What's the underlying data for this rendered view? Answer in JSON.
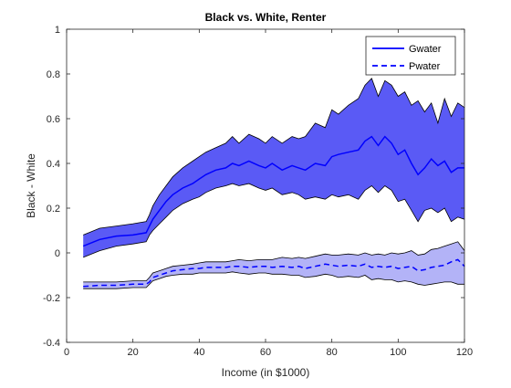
{
  "chart_data": {
    "type": "area",
    "title": "Black vs. White, Renter",
    "xlabel": "Income (in $1000)",
    "ylabel": "Black - White",
    "xlim": [
      0,
      120
    ],
    "ylim": [
      -0.4,
      1
    ],
    "xticks": [
      0,
      20,
      40,
      60,
      80,
      100,
      120
    ],
    "xtick_labels": [
      "0",
      "20",
      "40",
      "60",
      "80",
      "100",
      "120"
    ],
    "yticks": [
      -0.4,
      -0.2,
      0,
      0.2,
      0.4,
      0.6,
      0.8,
      1
    ],
    "ytick_labels": [
      "-0.4",
      "-0.2",
      "0",
      "0.2",
      "0.4",
      "0.6",
      "0.8",
      "1"
    ],
    "grid": false,
    "legend_position": "top-right",
    "x": [
      5,
      10,
      15,
      20,
      24,
      25,
      26,
      28,
      30,
      32,
      35,
      38,
      40,
      42,
      45,
      48,
      50,
      52,
      55,
      58,
      60,
      62,
      65,
      68,
      70,
      72,
      75,
      78,
      80,
      82,
      85,
      88,
      90,
      92,
      94,
      96,
      98,
      100,
      102,
      104,
      106,
      108,
      110,
      112,
      114,
      116,
      118,
      120
    ],
    "series": [
      {
        "name": "Gwater",
        "line_style": "solid",
        "color": "#0000ff",
        "band_color": "#5a5af5",
        "values": [
          0.03,
          0.06,
          0.075,
          0.08,
          0.09,
          0.12,
          0.15,
          0.19,
          0.23,
          0.26,
          0.29,
          0.31,
          0.33,
          0.35,
          0.37,
          0.38,
          0.4,
          0.39,
          0.41,
          0.39,
          0.38,
          0.4,
          0.37,
          0.39,
          0.38,
          0.37,
          0.4,
          0.39,
          0.43,
          0.44,
          0.45,
          0.46,
          0.5,
          0.52,
          0.48,
          0.52,
          0.49,
          0.44,
          0.46,
          0.4,
          0.35,
          0.38,
          0.42,
          0.39,
          0.41,
          0.36,
          0.38,
          0.38
        ],
        "upper": [
          0.08,
          0.11,
          0.12,
          0.13,
          0.14,
          0.17,
          0.21,
          0.26,
          0.3,
          0.34,
          0.38,
          0.41,
          0.43,
          0.45,
          0.47,
          0.49,
          0.52,
          0.49,
          0.53,
          0.51,
          0.49,
          0.52,
          0.49,
          0.52,
          0.51,
          0.52,
          0.58,
          0.56,
          0.64,
          0.62,
          0.66,
          0.69,
          0.75,
          0.78,
          0.7,
          0.77,
          0.75,
          0.7,
          0.72,
          0.66,
          0.68,
          0.63,
          0.67,
          0.58,
          0.69,
          0.61,
          0.67,
          0.65
        ],
        "lower": [
          -0.02,
          0.01,
          0.03,
          0.04,
          0.05,
          0.08,
          0.1,
          0.13,
          0.16,
          0.19,
          0.22,
          0.24,
          0.25,
          0.27,
          0.29,
          0.3,
          0.31,
          0.3,
          0.31,
          0.29,
          0.28,
          0.29,
          0.26,
          0.27,
          0.26,
          0.24,
          0.25,
          0.24,
          0.26,
          0.25,
          0.26,
          0.24,
          0.28,
          0.3,
          0.27,
          0.3,
          0.28,
          0.23,
          0.24,
          0.19,
          0.14,
          0.19,
          0.2,
          0.18,
          0.2,
          0.14,
          0.16,
          0.15
        ]
      },
      {
        "name": "Pwater",
        "line_style": "dashed",
        "color": "#0000ff",
        "band_color": "#b3b3f7",
        "values": [
          -0.15,
          -0.145,
          -0.145,
          -0.14,
          -0.14,
          -0.13,
          -0.11,
          -0.1,
          -0.09,
          -0.08,
          -0.075,
          -0.07,
          -0.07,
          -0.065,
          -0.065,
          -0.065,
          -0.06,
          -0.06,
          -0.065,
          -0.06,
          -0.06,
          -0.065,
          -0.06,
          -0.065,
          -0.06,
          -0.07,
          -0.06,
          -0.05,
          -0.055,
          -0.06,
          -0.055,
          -0.06,
          -0.05,
          -0.065,
          -0.06,
          -0.065,
          -0.06,
          -0.07,
          -0.065,
          -0.06,
          -0.08,
          -0.075,
          -0.065,
          -0.06,
          -0.055,
          -0.04,
          -0.03,
          -0.06
        ],
        "upper": [
          -0.13,
          -0.13,
          -0.13,
          -0.125,
          -0.125,
          -0.11,
          -0.09,
          -0.08,
          -0.07,
          -0.06,
          -0.055,
          -0.05,
          -0.045,
          -0.04,
          -0.04,
          -0.04,
          -0.035,
          -0.03,
          -0.035,
          -0.03,
          -0.03,
          -0.03,
          -0.02,
          -0.025,
          -0.02,
          -0.025,
          -0.015,
          -0.005,
          -0.01,
          -0.01,
          -0.005,
          -0.01,
          0.0,
          -0.01,
          -0.005,
          -0.01,
          0.0,
          -0.005,
          0.0,
          0.01,
          -0.01,
          -0.005,
          0.015,
          0.02,
          0.03,
          0.04,
          0.05,
          0.01
        ],
        "lower": [
          -0.16,
          -0.16,
          -0.16,
          -0.155,
          -0.155,
          -0.14,
          -0.125,
          -0.115,
          -0.105,
          -0.1,
          -0.095,
          -0.095,
          -0.09,
          -0.09,
          -0.09,
          -0.09,
          -0.085,
          -0.09,
          -0.095,
          -0.09,
          -0.09,
          -0.095,
          -0.095,
          -0.1,
          -0.1,
          -0.11,
          -0.105,
          -0.095,
          -0.1,
          -0.11,
          -0.105,
          -0.11,
          -0.1,
          -0.12,
          -0.115,
          -0.12,
          -0.12,
          -0.13,
          -0.125,
          -0.13,
          -0.14,
          -0.145,
          -0.14,
          -0.135,
          -0.13,
          -0.13,
          -0.14,
          -0.14
        ]
      }
    ]
  }
}
